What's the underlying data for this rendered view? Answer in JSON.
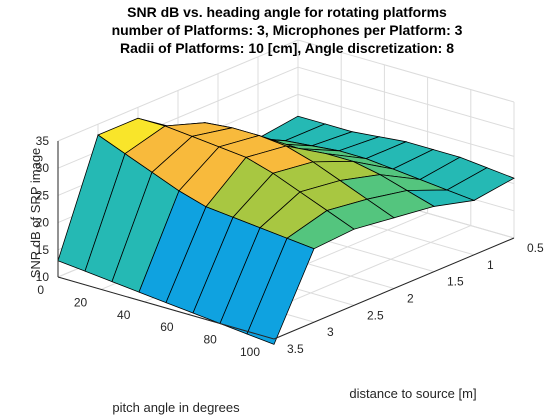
{
  "chart_data": {
    "type": "surface",
    "title": [
      "SNR dB vs. heading angle for rotating platforms",
      "number of Platforms: 3, Microphones per Platform: 3",
      "Radii of Platforms: 10 [cm], Angle discretization: 8"
    ],
    "xlabel": "pitch angle in degrees",
    "ylabel": "distance to source [m]",
    "zlabel": "SNR dB of SRP image",
    "xlim": [
      0,
      100
    ],
    "ylim": [
      0.5,
      3.5
    ],
    "zlim": [
      10,
      35
    ],
    "xticks": [
      0,
      20,
      40,
      60,
      80,
      100
    ],
    "yticks": [
      0.5,
      1,
      1.5,
      2,
      2.5,
      3,
      3.5
    ],
    "zticks": [
      10,
      15,
      20,
      25,
      30,
      35
    ],
    "pitch_deg": [
      0,
      12.5,
      25,
      37.5,
      50,
      62.5,
      75,
      87.5,
      100
    ],
    "distance_m": [
      0.5,
      1,
      1.5,
      2,
      2.5,
      3,
      3.5
    ],
    "snr_db": [
      [
        21.0,
        20.0,
        23.0,
        28.0,
        33.0,
        33.0,
        13.0
      ],
      [
        21.0,
        21.0,
        24.5,
        30.5,
        33.0,
        31.0,
        12.5
      ],
      [
        21.0,
        21.5,
        25.0,
        31.0,
        32.5,
        29.0,
        12.0
      ],
      [
        21.5,
        22.0,
        25.5,
        31.0,
        32.0,
        27.0,
        11.5
      ],
      [
        22.0,
        22.0,
        26.0,
        30.5,
        31.5,
        25.5,
        11.0
      ],
      [
        22.0,
        21.5,
        26.0,
        29.0,
        30.0,
        25.0,
        10.5
      ],
      [
        22.0,
        21.0,
        25.0,
        27.0,
        28.0,
        24.5,
        10.0
      ],
      [
        21.5,
        20.5,
        23.5,
        25.0,
        26.0,
        24.0,
        9.5
      ],
      [
        21.0,
        20.0,
        22.0,
        23.0,
        24.0,
        23.5,
        9.0
      ]
    ],
    "colormap": [
      "#3e26a8",
      "#2d72f4",
      "#0fa2e0",
      "#25b9b4",
      "#54c57e",
      "#a8c741",
      "#f8ba3c",
      "#f9e52a"
    ]
  }
}
